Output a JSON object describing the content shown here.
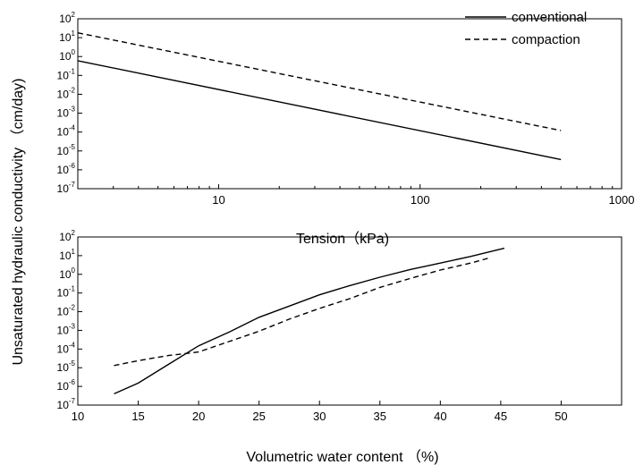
{
  "chart_data": [
    {
      "type": "line",
      "xscale": "log",
      "yscale": "log",
      "xlim": [
        2,
        1000
      ],
      "ylim": [
        1e-07,
        100
      ],
      "xlabel": "Tension（kPa)",
      "ylabel": "Unsaturated hydraulic conductivity （cm/day)",
      "x_ticks": [
        10,
        100,
        1000
      ],
      "y_exponents": [
        2,
        1,
        0,
        -1,
        -2,
        -3,
        -4,
        -5,
        -6,
        -7
      ],
      "legend_position": "top-right",
      "series": [
        {
          "name": "conventional",
          "style": "solid",
          "x": [
            2,
            500
          ],
          "y": [
            0.6,
            3.5e-06
          ]
        },
        {
          "name": "compaction",
          "style": "dashed",
          "x": [
            2,
            500
          ],
          "y": [
            18,
            0.00012
          ]
        }
      ]
    },
    {
      "type": "line",
      "yscale": "log",
      "xlim": [
        10,
        55
      ],
      "ylim": [
        1e-07,
        100
      ],
      "xlabel": "Volumetric water content （%)",
      "ylabel": "Unsaturated hydraulic conductivity （cm/day)",
      "x_ticks": [
        10,
        15,
        20,
        25,
        30,
        35,
        40,
        45,
        50
      ],
      "y_exponents": [
        2,
        1,
        0,
        -1,
        -2,
        -3,
        -4,
        -5,
        -6,
        -7
      ],
      "series": [
        {
          "name": "conventional",
          "style": "solid",
          "x": [
            13,
            15,
            17.5,
            20,
            22.5,
            25,
            27.5,
            30,
            32.5,
            35,
            37.5,
            40,
            42.5,
            45.3
          ],
          "y": [
            4e-07,
            1.5e-06,
            1.5e-05,
            0.00015,
            0.0008,
            0.005,
            0.02,
            0.08,
            0.25,
            0.7,
            1.8,
            4,
            9,
            25
          ]
        },
        {
          "name": "compaction",
          "style": "dashed",
          "x": [
            13,
            15,
            17.5,
            20,
            22.5,
            25,
            27.5,
            30,
            32.5,
            35,
            37.5,
            40,
            42.5,
            44.2
          ],
          "y": [
            1.3e-05,
            2.4e-05,
            4.5e-05,
            7e-05,
            0.00025,
            0.0009,
            0.004,
            0.015,
            0.05,
            0.2,
            0.6,
            1.7,
            4,
            8
          ]
        }
      ]
    }
  ]
}
